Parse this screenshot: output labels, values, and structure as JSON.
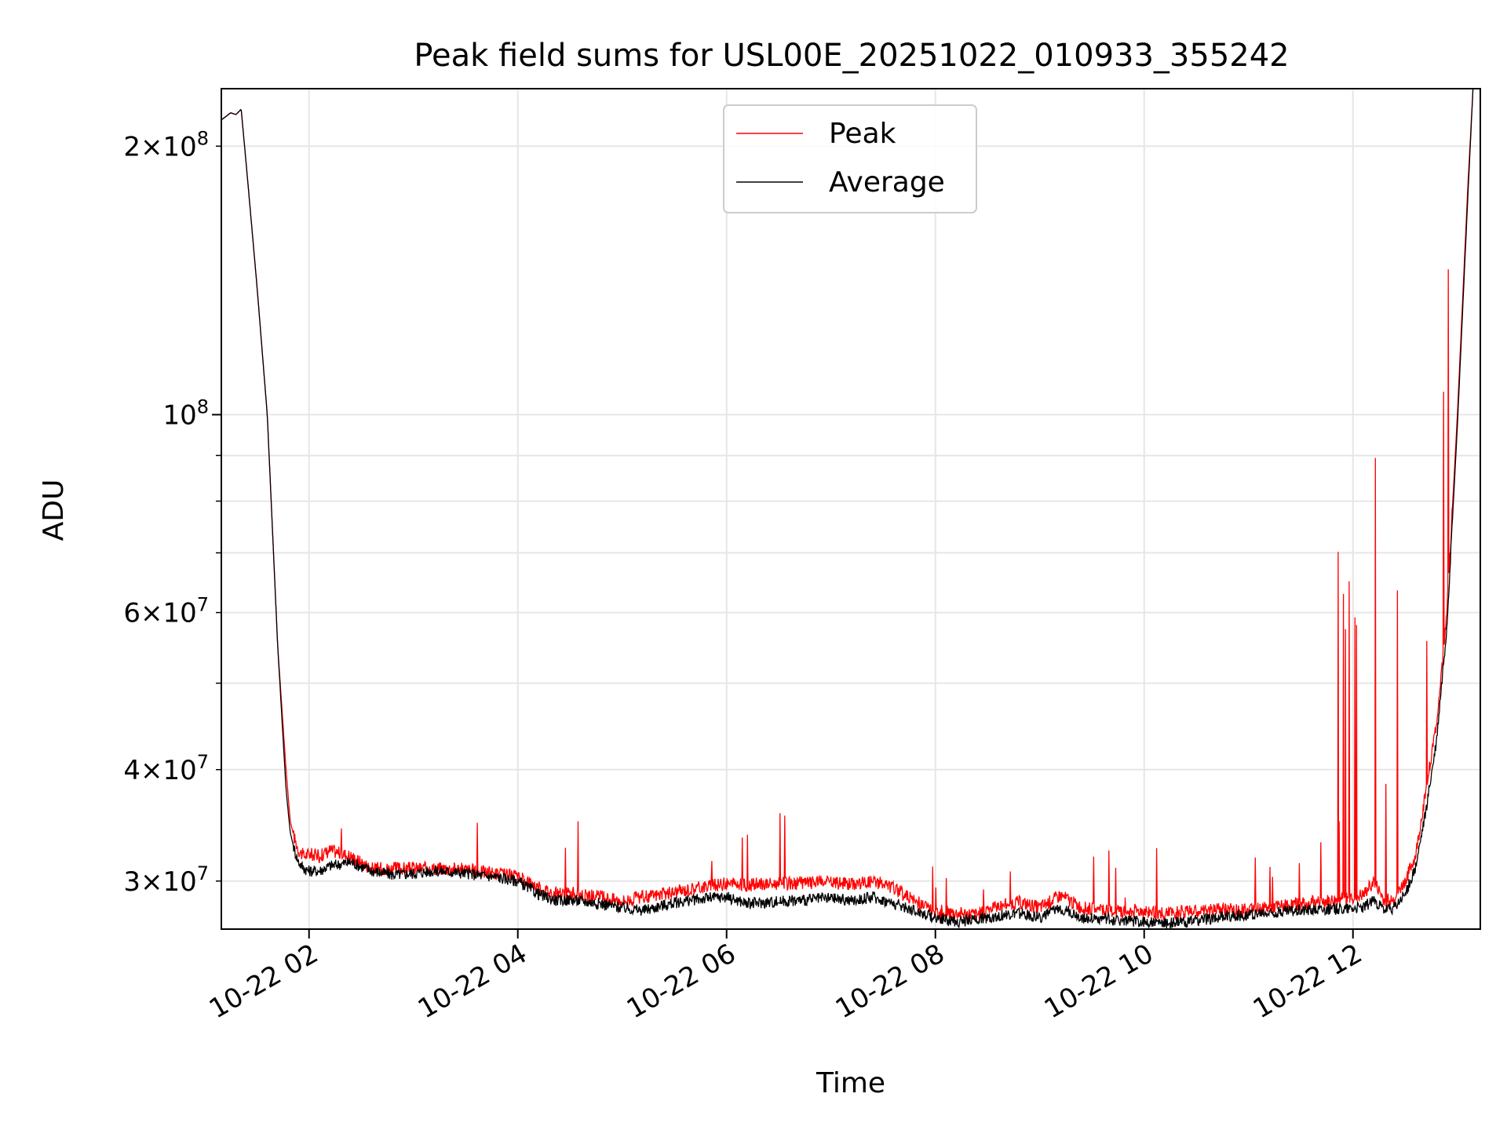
{
  "chart_data": {
    "type": "line",
    "title": "Peak field sums for USL00E_20251022_010933_355242",
    "xlabel": "Time",
    "ylabel": "ADU",
    "yscale": "log",
    "xlim": [
      1.16,
      13.22
    ],
    "ylim": [
      26500000,
      232000000
    ],
    "legend": "top-center",
    "grid": true,
    "xticks": [
      {
        "value": 2,
        "label": "10-22 02"
      },
      {
        "value": 4,
        "label": "10-22 04"
      },
      {
        "value": 6,
        "label": "10-22 06"
      },
      {
        "value": 8,
        "label": "10-22 08"
      },
      {
        "value": 10,
        "label": "10-22 10"
      },
      {
        "value": 12,
        "label": "10-22 12"
      }
    ],
    "yticks_major": [
      {
        "value": 100000000,
        "base": "10",
        "exp": "8",
        "mant": ""
      }
    ],
    "yticks_minor": [
      {
        "value": 30000000,
        "mant": "3",
        "base": "10",
        "exp": "7"
      },
      {
        "value": 40000000,
        "mant": "4",
        "base": "10",
        "exp": "7"
      },
      {
        "value": 60000000,
        "mant": "6",
        "base": "10",
        "exp": "7"
      },
      {
        "value": 200000000,
        "mant": "2",
        "base": "10",
        "exp": "8"
      }
    ],
    "yticks_minor_unlabeled": [
      50000000,
      70000000,
      80000000,
      90000000
    ],
    "series": [
      {
        "name": "Peak",
        "color": "#ff0000",
        "x": [
          1.16,
          1.25,
          1.3,
          1.35,
          1.4,
          1.5,
          1.6,
          1.7,
          1.78,
          1.82,
          1.86,
          1.9,
          1.95,
          2.0,
          2.1,
          2.2,
          2.4,
          2.6,
          2.8,
          3.0,
          3.2,
          3.4,
          3.6,
          3.8,
          4.0,
          4.1,
          4.2,
          4.3,
          4.4,
          4.5,
          4.6,
          4.8,
          5.0,
          5.2,
          5.4,
          5.6,
          5.8,
          6.0,
          6.2,
          6.4,
          6.6,
          6.8,
          7.0,
          7.2,
          7.4,
          7.6,
          7.8,
          8.0,
          8.2,
          8.4,
          8.6,
          8.8,
          9.0,
          9.2,
          9.4,
          9.6,
          9.8,
          10.0,
          10.2,
          10.4,
          10.6,
          10.8,
          11.0,
          11.2,
          11.4,
          11.6,
          11.8,
          12.0,
          12.1,
          12.2,
          12.3,
          12.4,
          12.5,
          12.6,
          12.7,
          12.8,
          12.9,
          13.0,
          13.1,
          13.15,
          13.22
        ],
        "y": [
          214000000,
          218000000,
          217000000,
          220000000,
          190000000,
          140000000,
          100000000,
          55000000,
          40000000,
          35000000,
          33500000,
          32500000,
          32000000,
          32200000,
          32000000,
          32500000,
          32000000,
          31000000,
          31000000,
          31000000,
          31000000,
          31000000,
          30800000,
          30600000,
          30300000,
          30000000,
          29500000,
          29200000,
          29000000,
          29100000,
          29000000,
          28800000,
          28500000,
          28800000,
          29000000,
          29300000,
          29600000,
          29800000,
          29700000,
          29800000,
          29800000,
          29900000,
          29900000,
          29800000,
          30000000,
          29500000,
          28500000,
          27800000,
          27600000,
          27500000,
          28200000,
          28400000,
          28000000,
          28900000,
          28000000,
          27800000,
          27700000,
          27800000,
          27600000,
          27700000,
          27800000,
          27900000,
          27800000,
          28000000,
          28200000,
          28400000,
          28500000,
          28800000,
          28900000,
          30000000,
          28500000,
          28700000,
          30000000,
          32000000,
          38000000,
          45000000,
          60000000,
          100000000,
          180000000,
          232000000,
          232000000
        ]
      },
      {
        "name": "Average",
        "color": "#000000",
        "x": [
          1.16,
          1.25,
          1.3,
          1.35,
          1.4,
          1.5,
          1.6,
          1.7,
          1.78,
          1.82,
          1.86,
          1.9,
          1.95,
          2.0,
          2.1,
          2.2,
          2.4,
          2.6,
          2.8,
          3.0,
          3.2,
          3.4,
          3.6,
          3.8,
          4.0,
          4.1,
          4.2,
          4.3,
          4.4,
          4.5,
          4.6,
          4.8,
          5.0,
          5.2,
          5.4,
          5.6,
          5.8,
          6.0,
          6.2,
          6.4,
          6.6,
          6.8,
          7.0,
          7.2,
          7.4,
          7.6,
          7.8,
          8.0,
          8.2,
          8.4,
          8.6,
          8.8,
          9.0,
          9.2,
          9.4,
          9.6,
          9.8,
          10.0,
          10.2,
          10.4,
          10.6,
          10.8,
          11.0,
          11.2,
          11.4,
          11.6,
          11.8,
          12.0,
          12.1,
          12.2,
          12.3,
          12.4,
          12.5,
          12.6,
          12.7,
          12.8,
          12.9,
          13.0,
          13.1,
          13.15,
          13.22
        ],
        "y": [
          214000000,
          218000000,
          217000000,
          220000000,
          190000000,
          140000000,
          100000000,
          55000000,
          38000000,
          34000000,
          32500000,
          31500000,
          31000000,
          30800000,
          30800000,
          31200000,
          31500000,
          30800000,
          30500000,
          30600000,
          30800000,
          30700000,
          30500000,
          30300000,
          30000000,
          29500000,
          29000000,
          28700000,
          28500000,
          28600000,
          28500000,
          28300000,
          28000000,
          27800000,
          28200000,
          28500000,
          28700000,
          28800000,
          28300000,
          28400000,
          28500000,
          28600000,
          28700000,
          28500000,
          28800000,
          28300000,
          27800000,
          27300000,
          27000000,
          27200000,
          27400000,
          27600000,
          27300000,
          28000000,
          27300000,
          27200000,
          27100000,
          27000000,
          26900000,
          27000000,
          27200000,
          27400000,
          27500000,
          27600000,
          27800000,
          27900000,
          27900000,
          28000000,
          28000000,
          28600000,
          27800000,
          28000000,
          29000000,
          31000000,
          36000000,
          43000000,
          58000000,
          97000000,
          175000000,
          232000000,
          232000000
        ]
      }
    ]
  }
}
